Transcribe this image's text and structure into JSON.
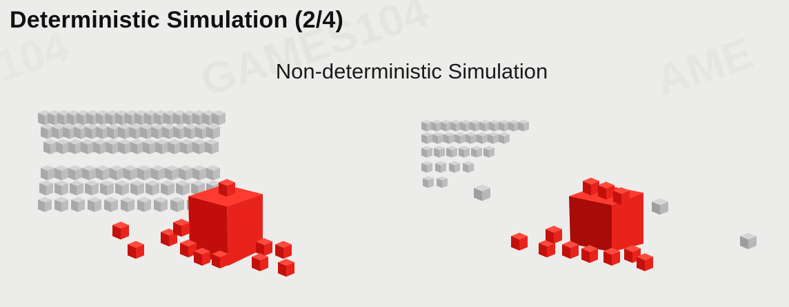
{
  "slide": {
    "title": "Deterministic Simulation (2/4)",
    "subtitle": "Non-deterministic Simulation",
    "watermark_text": "GAMES104"
  },
  "colors": {
    "background": "#ececea",
    "title_text": "#111111",
    "gray_cube": "#b5b5b5",
    "red_cube": "#e8231c"
  },
  "panels": [
    {
      "name": "simulation-run-left",
      "image": "grid of gray cubes collapsing with large red cube and scattered small red cubes"
    },
    {
      "name": "simulation-run-right",
      "image": "smaller grid of gray cubes with large red cube, scattered small red and gray cubes"
    }
  ]
}
